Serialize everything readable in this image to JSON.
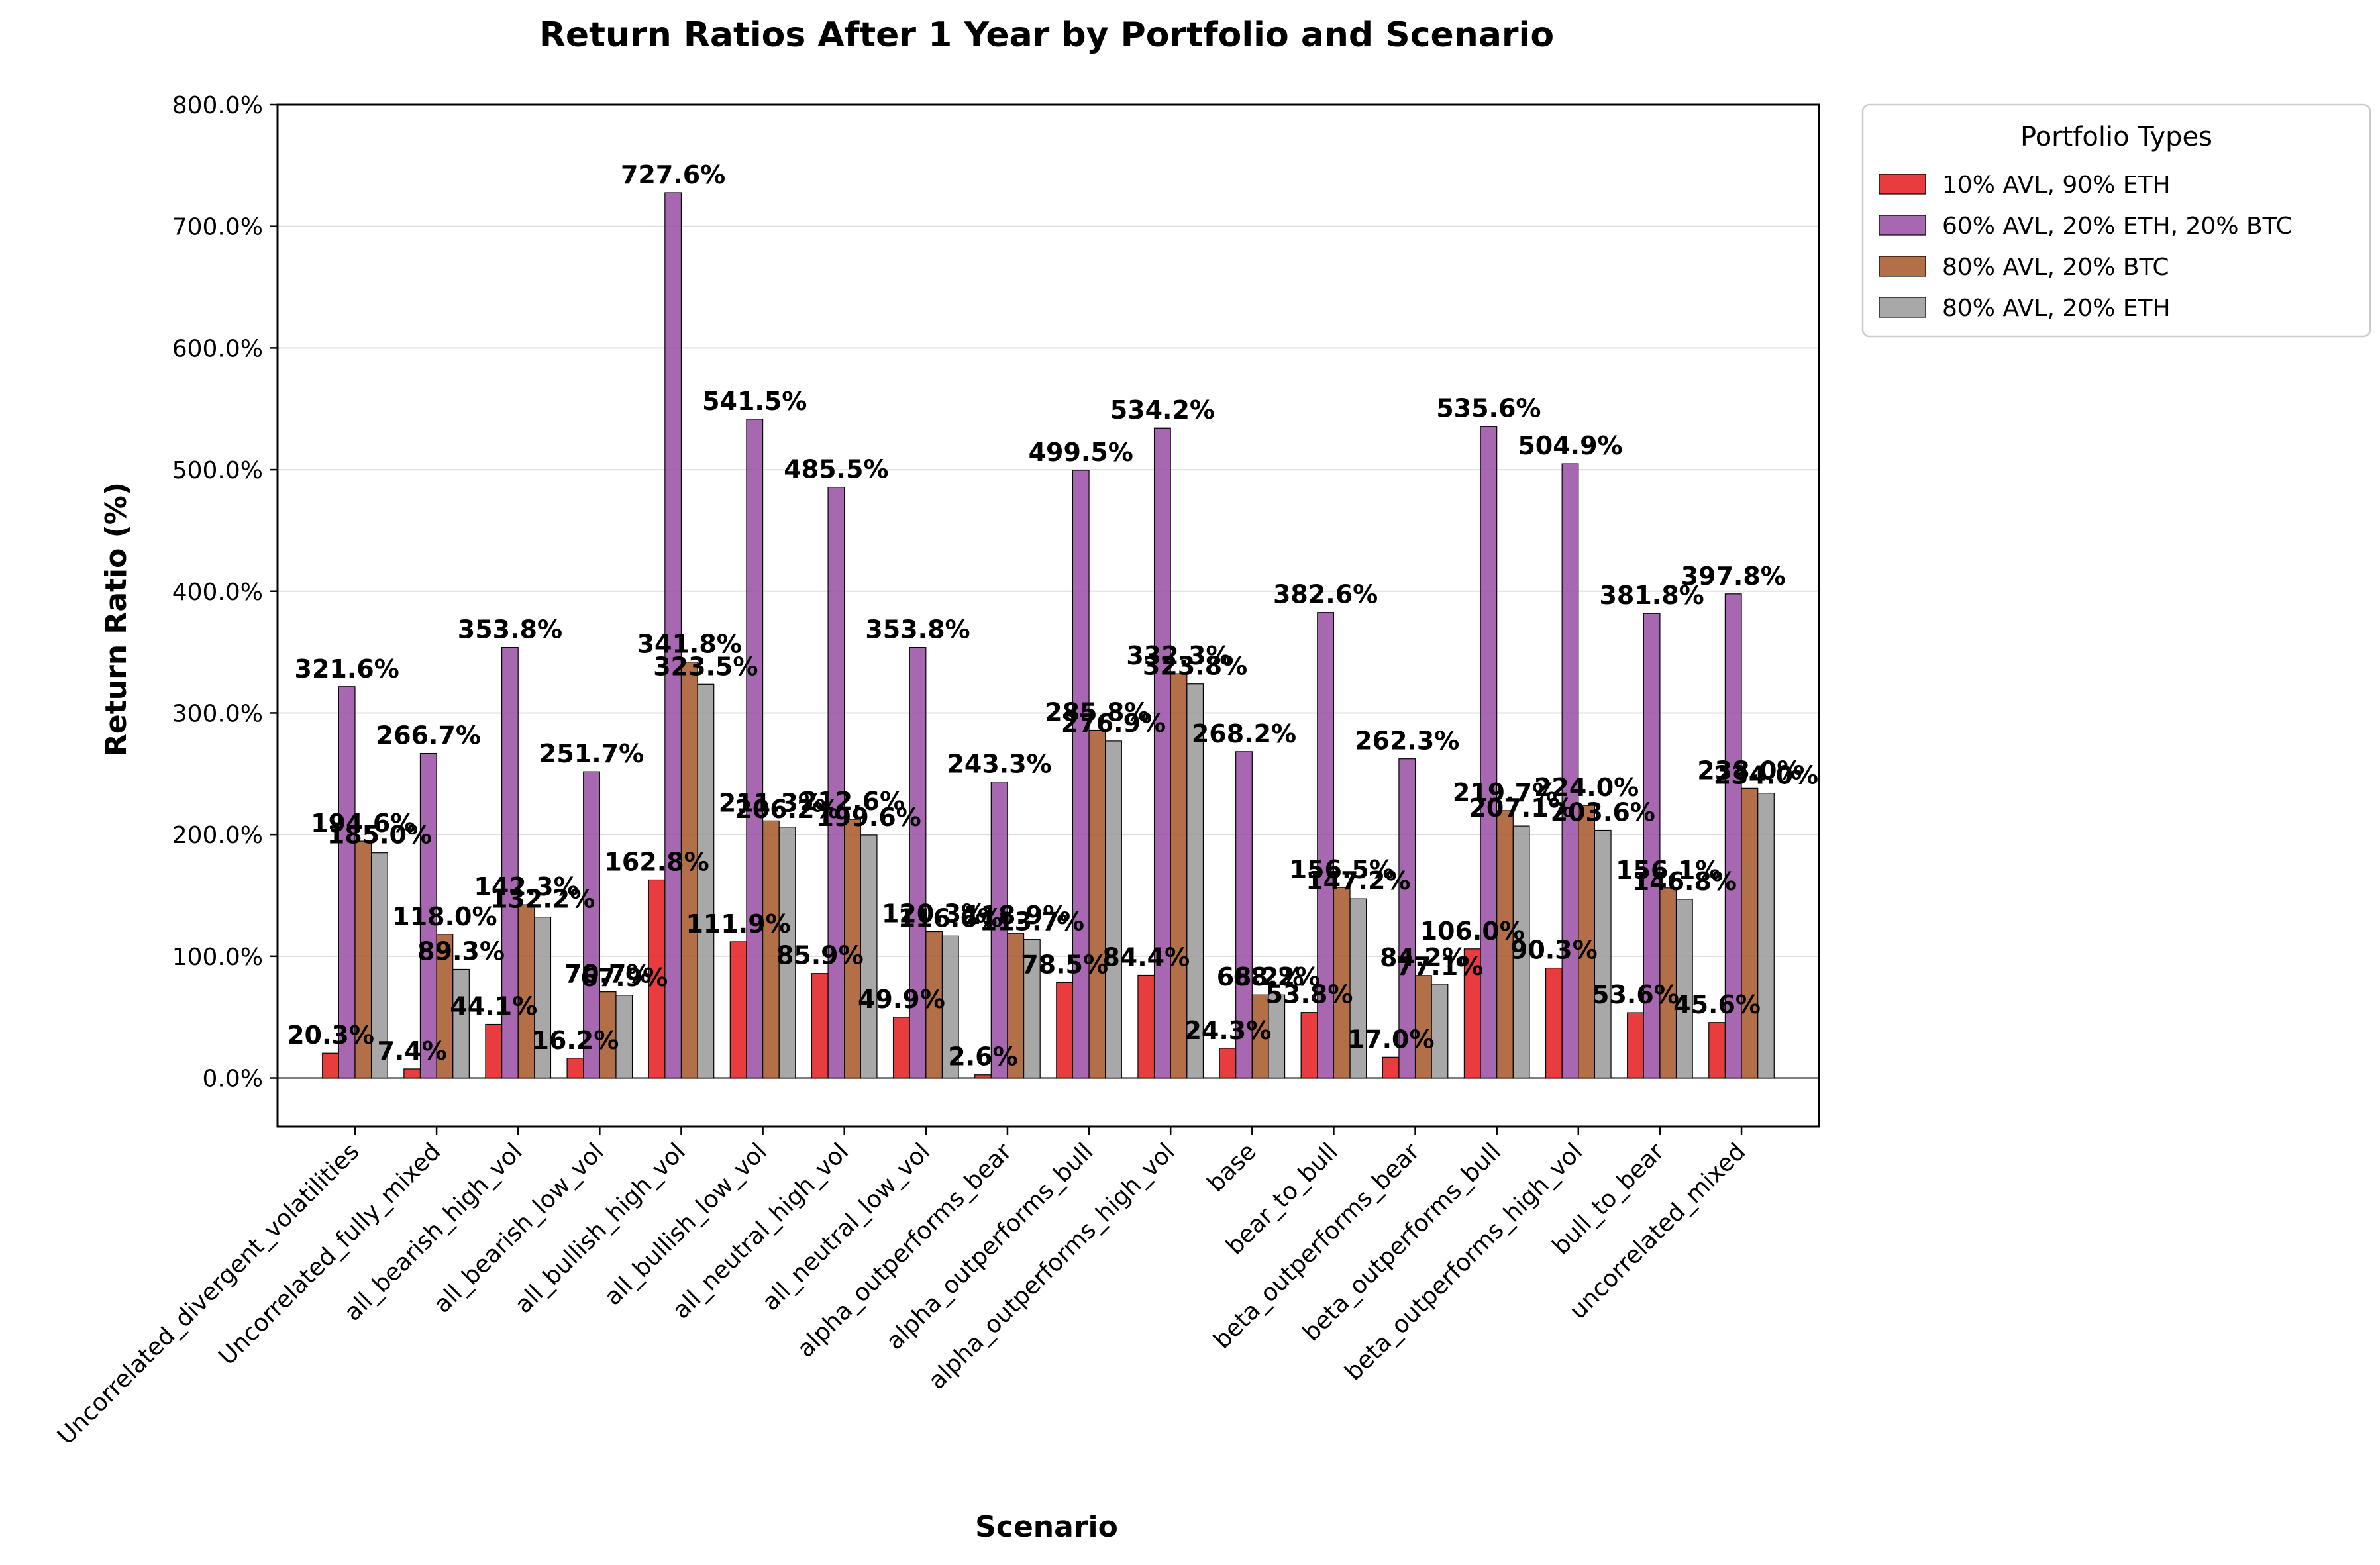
{
  "chart_data": {
    "type": "bar",
    "title": "Return Ratios After 1 Year by Portfolio and Scenario",
    "xlabel": "Scenario",
    "ylabel": "Return Ratio (%)",
    "ylim": [
      -40,
      800
    ],
    "yticks": [
      "0.0%",
      "100.0%",
      "200.0%",
      "300.0%",
      "400.0%",
      "500.0%",
      "600.0%",
      "700.0%",
      "800.0%"
    ],
    "grid": "horizontal",
    "legend": {
      "title": "Portfolio Types",
      "placement": "outside-top-right"
    },
    "categories": [
      "Uncorrelated_divergent_volatilities",
      "Uncorrelated_fully_mixed",
      "all_bearish_high_vol",
      "all_bearish_low_vol",
      "all_bullish_high_vol",
      "all_bullish_low_vol",
      "all_neutral_high_vol",
      "all_neutral_low_vol",
      "alpha_outperforms_bear",
      "alpha_outperforms_bull",
      "alpha_outperforms_high_vol",
      "base",
      "bear_to_bull",
      "beta_outperforms_bear",
      "beta_outperforms_bull",
      "beta_outperforms_high_vol",
      "bull_to_bear",
      "uncorrelated_mixed"
    ],
    "series": [
      {
        "name": "10% AVL, 90% ETH",
        "color": "#e41a1c",
        "values": [
          20.3,
          7.4,
          44.1,
          16.2,
          162.8,
          111.9,
          85.9,
          49.9,
          2.6,
          78.5,
          84.4,
          24.3,
          53.8,
          17.0,
          106.0,
          90.3,
          53.6,
          45.6
        ],
        "labels": [
          "20.3%",
          "7.4%",
          "44.1%",
          "16.2%",
          "162.8%",
          "111.9%",
          "85.9%",
          "49.9%",
          "2.6%",
          "78.5%",
          "84.4%",
          "24.3%",
          "53.8%",
          "17.0%",
          "106.0%",
          "90.3%",
          "53.6%",
          "45.6%"
        ]
      },
      {
        "name": "60% AVL, 20% ETH, 20% BTC",
        "color": "#984ea3",
        "values": [
          321.6,
          266.7,
          353.8,
          251.7,
          727.6,
          541.5,
          485.5,
          353.8,
          243.3,
          499.5,
          534.2,
          268.2,
          382.6,
          262.3,
          535.6,
          504.9,
          381.8,
          397.8
        ],
        "labels": [
          "321.6%",
          "266.7%",
          "353.8%",
          "251.7%",
          "727.6%",
          "541.5%",
          "485.5%",
          "353.8%",
          "243.3%",
          "499.5%",
          "534.2%",
          "268.2%",
          "382.6%",
          "262.3%",
          "535.6%",
          "504.9%",
          "381.8%",
          "397.8%"
        ]
      },
      {
        "name": "80% AVL, 20% BTC",
        "color": "#a65628",
        "values": [
          194.6,
          118.0,
          142.3,
          70.7,
          341.8,
          211.3,
          212.6,
          120.3,
          118.9,
          285.8,
          332.3,
          68.2,
          156.5,
          84.2,
          219.7,
          224.0,
          156.1,
          238.0
        ],
        "labels": [
          "194.6%",
          "118.0%",
          "142.3%",
          "70.7%",
          "341.8%",
          "211.3%",
          "212.6%",
          "120.3%",
          "118.9%",
          "285.8%",
          "332.3%",
          "68.2%",
          "156.5%",
          "84.2%",
          "219.7%",
          "224.0%",
          "156.1%",
          "238.0%"
        ]
      },
      {
        "name": "80% AVL, 20% ETH",
        "color": "#999999",
        "values": [
          185.0,
          89.3,
          132.2,
          67.9,
          323.5,
          206.2,
          199.6,
          116.6,
          113.7,
          276.9,
          323.8,
          68.2,
          147.2,
          77.1,
          207.1,
          203.6,
          146.8,
          234.0
        ],
        "labels": [
          "185.0%",
          "89.3%",
          "132.2%",
          "67.9%",
          "323.5%",
          "206.2%",
          "199.6%",
          "116.6%",
          "113.7%",
          "276.9%",
          "323.8%",
          "68.2%",
          "147.2%",
          "77.1%",
          "207.1%",
          "203.6%",
          "146.8%",
          "234.0%"
        ]
      }
    ]
  }
}
